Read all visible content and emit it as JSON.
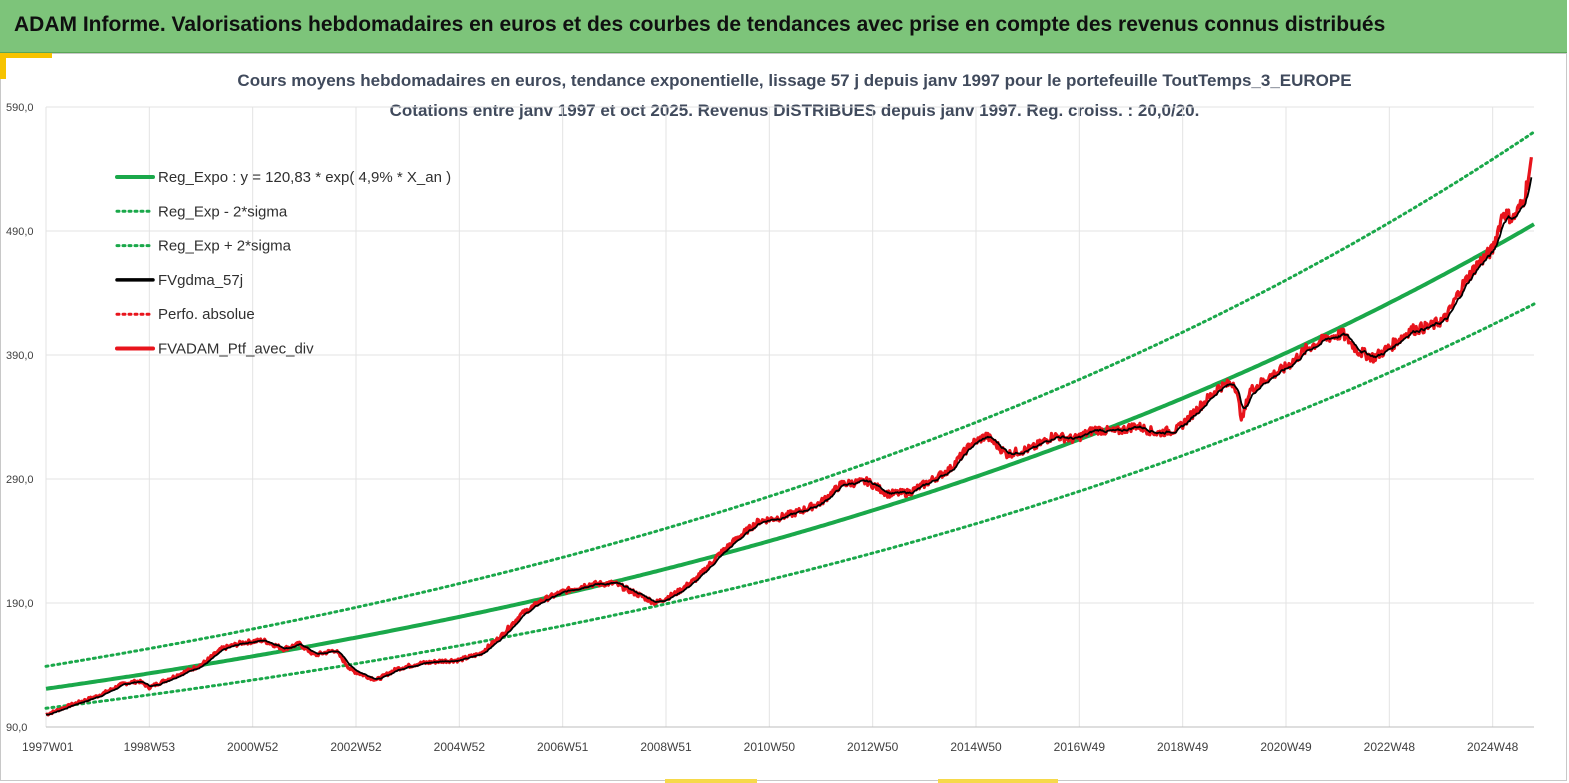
{
  "banner": {
    "title": "ADAM Informe. Valorisations hebdomadaires en euros et des courbes de tendances avec prise en compte des revenus connus distribués"
  },
  "colors": {
    "banner_bg": "#7dc47a",
    "accent_yellow": "#f6c300",
    "reg_green": "#1aa84a",
    "black_series": "#000000",
    "red_series": "#e8141c",
    "grid": "#e3e3e3"
  },
  "chart_data": {
    "type": "line",
    "title": "Cours moyens hebdomadaires  en euros, tendance exponentielle, lissage 57 j depuis janv 1997 pour le portefeuille ToutTemps_3_EUROPE",
    "subtitle": "Cotations  entre janv 1997 et oct 2025. Revenus DISTRIBUES  depuis janv 1997. Reg. croiss. : 20,0/20.",
    "xlabel": "",
    "ylabel": "",
    "ylim": [
      90,
      590
    ],
    "xlim": [
      1997.0,
      2025.8
    ],
    "yticks": [
      "90,0",
      "190,0",
      "290,0",
      "390,0",
      "490,0",
      "590,0"
    ],
    "ytick_values": [
      90,
      190,
      290,
      390,
      490,
      590
    ],
    "xtick_labels": [
      "1997W01",
      "1998W53",
      "2000W52",
      "2002W52",
      "2004W52",
      "2006W51",
      "2008W51",
      "2010W50",
      "2012W50",
      "2014W50",
      "2016W49",
      "2018W49",
      "2020W49",
      "2022W48",
      "2024W48"
    ],
    "xtick_years": [
      1997.0,
      1999.0,
      2001.0,
      2003.0,
      2005.0,
      2007.0,
      2009.0,
      2011.0,
      2013.0,
      2015.0,
      2017.0,
      2019.0,
      2021.0,
      2023.0,
      2025.0
    ],
    "grid": true,
    "legend_position": "top-left",
    "regression": {
      "a": 120.83,
      "rate": 0.049,
      "lower_factor": 0.87,
      "upper_factor": 1.15
    },
    "series": [
      {
        "name": "Reg_Expo : y = 120,83 * exp( 4,9% *  X_an )",
        "style": "solid-thick",
        "color": "#1aa84a"
      },
      {
        "name": "Reg_Exp - 2*sigma",
        "style": "dotted",
        "color": "#1aa84a"
      },
      {
        "name": "Reg_Exp + 2*sigma",
        "style": "dotted",
        "color": "#1aa84a"
      },
      {
        "name": "FVgdma_57j",
        "style": "solid",
        "color": "#000000"
      },
      {
        "name": "Perfo. absolue",
        "style": "dotted",
        "color": "#e8141c"
      },
      {
        "name": "FVADAM_Ptf_avec_div",
        "style": "solid-thick",
        "color": "#e8141c"
      }
    ],
    "price_points": [
      [
        1997.0,
        100
      ],
      [
        1997.5,
        108
      ],
      [
        1998.0,
        115
      ],
      [
        1998.5,
        125
      ],
      [
        1998.8,
        127
      ],
      [
        1999.0,
        122
      ],
      [
        1999.5,
        131
      ],
      [
        2000.0,
        140
      ],
      [
        2000.4,
        153
      ],
      [
        2000.8,
        158
      ],
      [
        2001.2,
        160
      ],
      [
        2001.6,
        153
      ],
      [
        2001.9,
        157
      ],
      [
        2002.2,
        148
      ],
      [
        2002.6,
        152
      ],
      [
        2002.9,
        136
      ],
      [
        2003.2,
        131
      ],
      [
        2003.4,
        128
      ],
      [
        2003.8,
        137
      ],
      [
        2004.2,
        141
      ],
      [
        2004.6,
        143
      ],
      [
        2005.0,
        144
      ],
      [
        2005.4,
        149
      ],
      [
        2005.8,
        163
      ],
      [
        2006.2,
        181
      ],
      [
        2006.6,
        192
      ],
      [
        2007.0,
        199
      ],
      [
        2007.5,
        205
      ],
      [
        2008.0,
        206
      ],
      [
        2008.4,
        198
      ],
      [
        2008.8,
        190
      ],
      [
        2009.2,
        198
      ],
      [
        2009.6,
        210
      ],
      [
        2010.0,
        228
      ],
      [
        2010.4,
        243
      ],
      [
        2010.8,
        256
      ],
      [
        2011.2,
        259
      ],
      [
        2011.6,
        264
      ],
      [
        2012.0,
        271
      ],
      [
        2012.4,
        286
      ],
      [
        2012.9,
        288
      ],
      [
        2013.3,
        278
      ],
      [
        2013.7,
        279
      ],
      [
        2014.1,
        288
      ],
      [
        2014.5,
        298
      ],
      [
        2014.9,
        318
      ],
      [
        2015.2,
        325
      ],
      [
        2015.6,
        310
      ],
      [
        2016.1,
        315
      ],
      [
        2016.5,
        325
      ],
      [
        2016.9,
        322
      ],
      [
        2017.3,
        330
      ],
      [
        2017.7,
        328
      ],
      [
        2018.1,
        333
      ],
      [
        2018.5,
        327
      ],
      [
        2018.9,
        330
      ],
      [
        2019.3,
        347
      ],
      [
        2019.7,
        364
      ],
      [
        2020.0,
        368
      ],
      [
        2020.15,
        338
      ],
      [
        2020.3,
        361
      ],
      [
        2020.7,
        373
      ],
      [
        2021.0,
        380
      ],
      [
        2021.4,
        395
      ],
      [
        2021.8,
        404
      ],
      [
        2022.1,
        407
      ],
      [
        2022.4,
        393
      ],
      [
        2022.7,
        388
      ],
      [
        2023.0,
        396
      ],
      [
        2023.4,
        410
      ],
      [
        2023.8,
        413
      ],
      [
        2024.1,
        420
      ],
      [
        2024.4,
        445
      ],
      [
        2024.7,
        463
      ],
      [
        2025.0,
        475
      ],
      [
        2025.2,
        505
      ],
      [
        2025.4,
        500
      ],
      [
        2025.6,
        515
      ],
      [
        2025.75,
        545
      ]
    ]
  }
}
